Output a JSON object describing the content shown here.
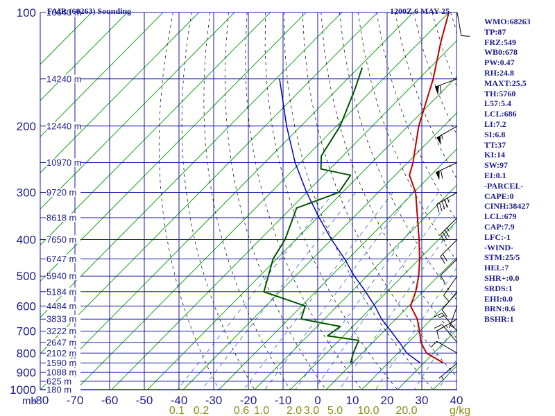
{
  "header": {
    "title": "FAIR (68263) Sounding",
    "valid_time": "1200Z  6 MAY 25"
  },
  "stats": [
    "WMO:68263",
    "TP:87",
    "FRZ:549",
    "WB0:678",
    "PW:0.47",
    "RH:24.8",
    "MAXT:25.5",
    "TH:5760",
    "L57:5.4",
    "LCL:686",
    "LI:7.2",
    "SI:6.8",
    "TT:37",
    "KI:14",
    "SW:97",
    "EI:0.1",
    "-PARCEL-",
    "CAPE:0",
    "CINH:38427",
    "LCL:679",
    "CAP:7.9",
    "LFC:-1",
    "-WIND-",
    "STM:25/5",
    "HEL:7",
    "SHR+:0.0",
    "SRDS:1",
    "EHI:0.0",
    "BRN:0.6",
    "BSHR:1"
  ],
  "colors": {
    "grid": "#1818a0",
    "isotherm": "#18a018",
    "dry_adiabat": "#181818",
    "mixing_ratio": "#2a6ad6",
    "temperature": "#c00000",
    "dewpoint": "#005400",
    "parcel": "#0000c0",
    "axis_labels": "#1c1c8c",
    "mixing_labels": "#8c8c14"
  },
  "chart_data": {
    "type": "line",
    "title": "FAIR (68263) Sounding",
    "diagram": "skew-T log-P",
    "pressure_levels_mb": [
      100,
      200,
      300,
      400,
      500,
      600,
      700,
      800,
      900,
      1000
    ],
    "pressure_axis_label": "mb",
    "temperature_ticks_c": [
      -80,
      -70,
      -60,
      -50,
      -40,
      -30,
      -20,
      -10,
      0,
      10,
      20,
      30,
      40
    ],
    "mixing_ratio_labels": [
      "0.1",
      "0.2",
      "0.6",
      "1.0",
      "2.0",
      "3.0",
      "5.0",
      "10.0",
      "20.0",
      "g/kg"
    ],
    "height_labels": [
      {
        "p": 100,
        "text": "16640 m"
      },
      {
        "p": 150,
        "text": "14240 m"
      },
      {
        "p": 200,
        "text": "12440 m"
      },
      {
        "p": 250,
        "text": "10970 m"
      },
      {
        "p": 300,
        "text": "9720 m"
      },
      {
        "p": 350,
        "text": "8618 m"
      },
      {
        "p": 400,
        "text": "7650 m"
      },
      {
        "p": 450,
        "text": "6747 m"
      },
      {
        "p": 500,
        "text": "5940 m"
      },
      {
        "p": 550,
        "text": "5184 m"
      },
      {
        "p": 600,
        "text": "4484 m"
      },
      {
        "p": 650,
        "text": "3833 m"
      },
      {
        "p": 700,
        "text": "3222 m"
      },
      {
        "p": 750,
        "text": "2647 m"
      },
      {
        "p": 800,
        "text": "2102 m"
      },
      {
        "p": 850,
        "text": "1590 m"
      },
      {
        "p": 900,
        "text": "1088 m"
      },
      {
        "p": 950,
        "text": "625 m"
      },
      {
        "p": 1000,
        "text": "180 m"
      }
    ],
    "series": [
      {
        "key": "temperature",
        "points": [
          {
            "p": 850,
            "t": 25.5
          },
          {
            "p": 800,
            "t": 18.0
          },
          {
            "p": 750,
            "t": 13.5
          },
          {
            "p": 700,
            "t": 10.0
          },
          {
            "p": 650,
            "t": 6.0
          },
          {
            "p": 600,
            "t": 0.5
          },
          {
            "p": 580,
            "t": -0.5
          },
          {
            "p": 550,
            "t": -2.0
          },
          {
            "p": 500,
            "t": -5.5
          },
          {
            "p": 450,
            "t": -10.0
          },
          {
            "p": 400,
            "t": -15.5
          },
          {
            "p": 350,
            "t": -22.0
          },
          {
            "p": 300,
            "t": -29.5
          },
          {
            "p": 270,
            "t": -36.0
          },
          {
            "p": 250,
            "t": -38.5
          },
          {
            "p": 200,
            "t": -47.0
          },
          {
            "p": 150,
            "t": -56.0
          },
          {
            "p": 120,
            "t": -64.0
          },
          {
            "p": 100,
            "t": -70.0
          }
        ]
      },
      {
        "key": "dewpoint",
        "points": [
          {
            "p": 850,
            "t": -0.5
          },
          {
            "p": 800,
            "t": -2.5
          },
          {
            "p": 740,
            "t": -4.5
          },
          {
            "p": 720,
            "t": -14.5
          },
          {
            "p": 680,
            "t": -13.5
          },
          {
            "p": 650,
            "t": -26.5
          },
          {
            "p": 600,
            "t": -29.0
          },
          {
            "p": 550,
            "t": -44.5
          },
          {
            "p": 450,
            "t": -51.0
          },
          {
            "p": 400,
            "t": -53.0
          },
          {
            "p": 330,
            "t": -58.5
          },
          {
            "p": 300,
            "t": -51.0
          },
          {
            "p": 270,
            "t": -52.5
          },
          {
            "p": 260,
            "t": -62.5
          },
          {
            "p": 240,
            "t": -66.0
          },
          {
            "p": 200,
            "t": -69.0
          },
          {
            "p": 160,
            "t": -75.0
          },
          {
            "p": 140,
            "t": -79.0
          }
        ]
      },
      {
        "key": "parcel",
        "points": [
          {
            "p": 850,
            "t": 19.0
          },
          {
            "p": 800,
            "t": 12.5
          },
          {
            "p": 750,
            "t": 7.5
          },
          {
            "p": 700,
            "t": 2.0
          },
          {
            "p": 650,
            "t": -4.0
          },
          {
            "p": 600,
            "t": -9.5
          },
          {
            "p": 550,
            "t": -16.0
          },
          {
            "p": 500,
            "t": -23.5
          },
          {
            "p": 450,
            "t": -31.0
          },
          {
            "p": 400,
            "t": -40.0
          },
          {
            "p": 350,
            "t": -49.5
          },
          {
            "p": 300,
            "t": -60.0
          },
          {
            "p": 250,
            "t": -71.5
          },
          {
            "p": 200,
            "t": -84.0
          },
          {
            "p": 150,
            "t": -99.0
          }
        ]
      }
    ],
    "wind_barbs": [
      {
        "p": 100,
        "dir": 170,
        "spd": 10
      },
      {
        "p": 150,
        "dir": 250,
        "spd": 60
      },
      {
        "p": 200,
        "dir": 240,
        "spd": 55
      },
      {
        "p": 250,
        "dir": 245,
        "spd": 60
      },
      {
        "p": 300,
        "dir": 240,
        "spd": 45
      },
      {
        "p": 350,
        "dir": 225,
        "spd": 35
      },
      {
        "p": 400,
        "dir": 225,
        "spd": 20
      },
      {
        "p": 450,
        "dir": 225,
        "spd": 10
      },
      {
        "p": 500,
        "dir": 215,
        "spd": 10
      },
      {
        "p": 550,
        "dir": 220,
        "spd": 10
      },
      {
        "p": 600,
        "dir": 200,
        "spd": 5
      },
      {
        "p": 650,
        "dir": 240,
        "spd": 10
      },
      {
        "p": 700,
        "dir": 320,
        "spd": 15
      },
      {
        "p": 750,
        "dir": 320,
        "spd": 15
      },
      {
        "p": 800,
        "dir": 300,
        "spd": 10
      },
      {
        "p": 850,
        "dir": 230,
        "spd": 5
      }
    ]
  }
}
